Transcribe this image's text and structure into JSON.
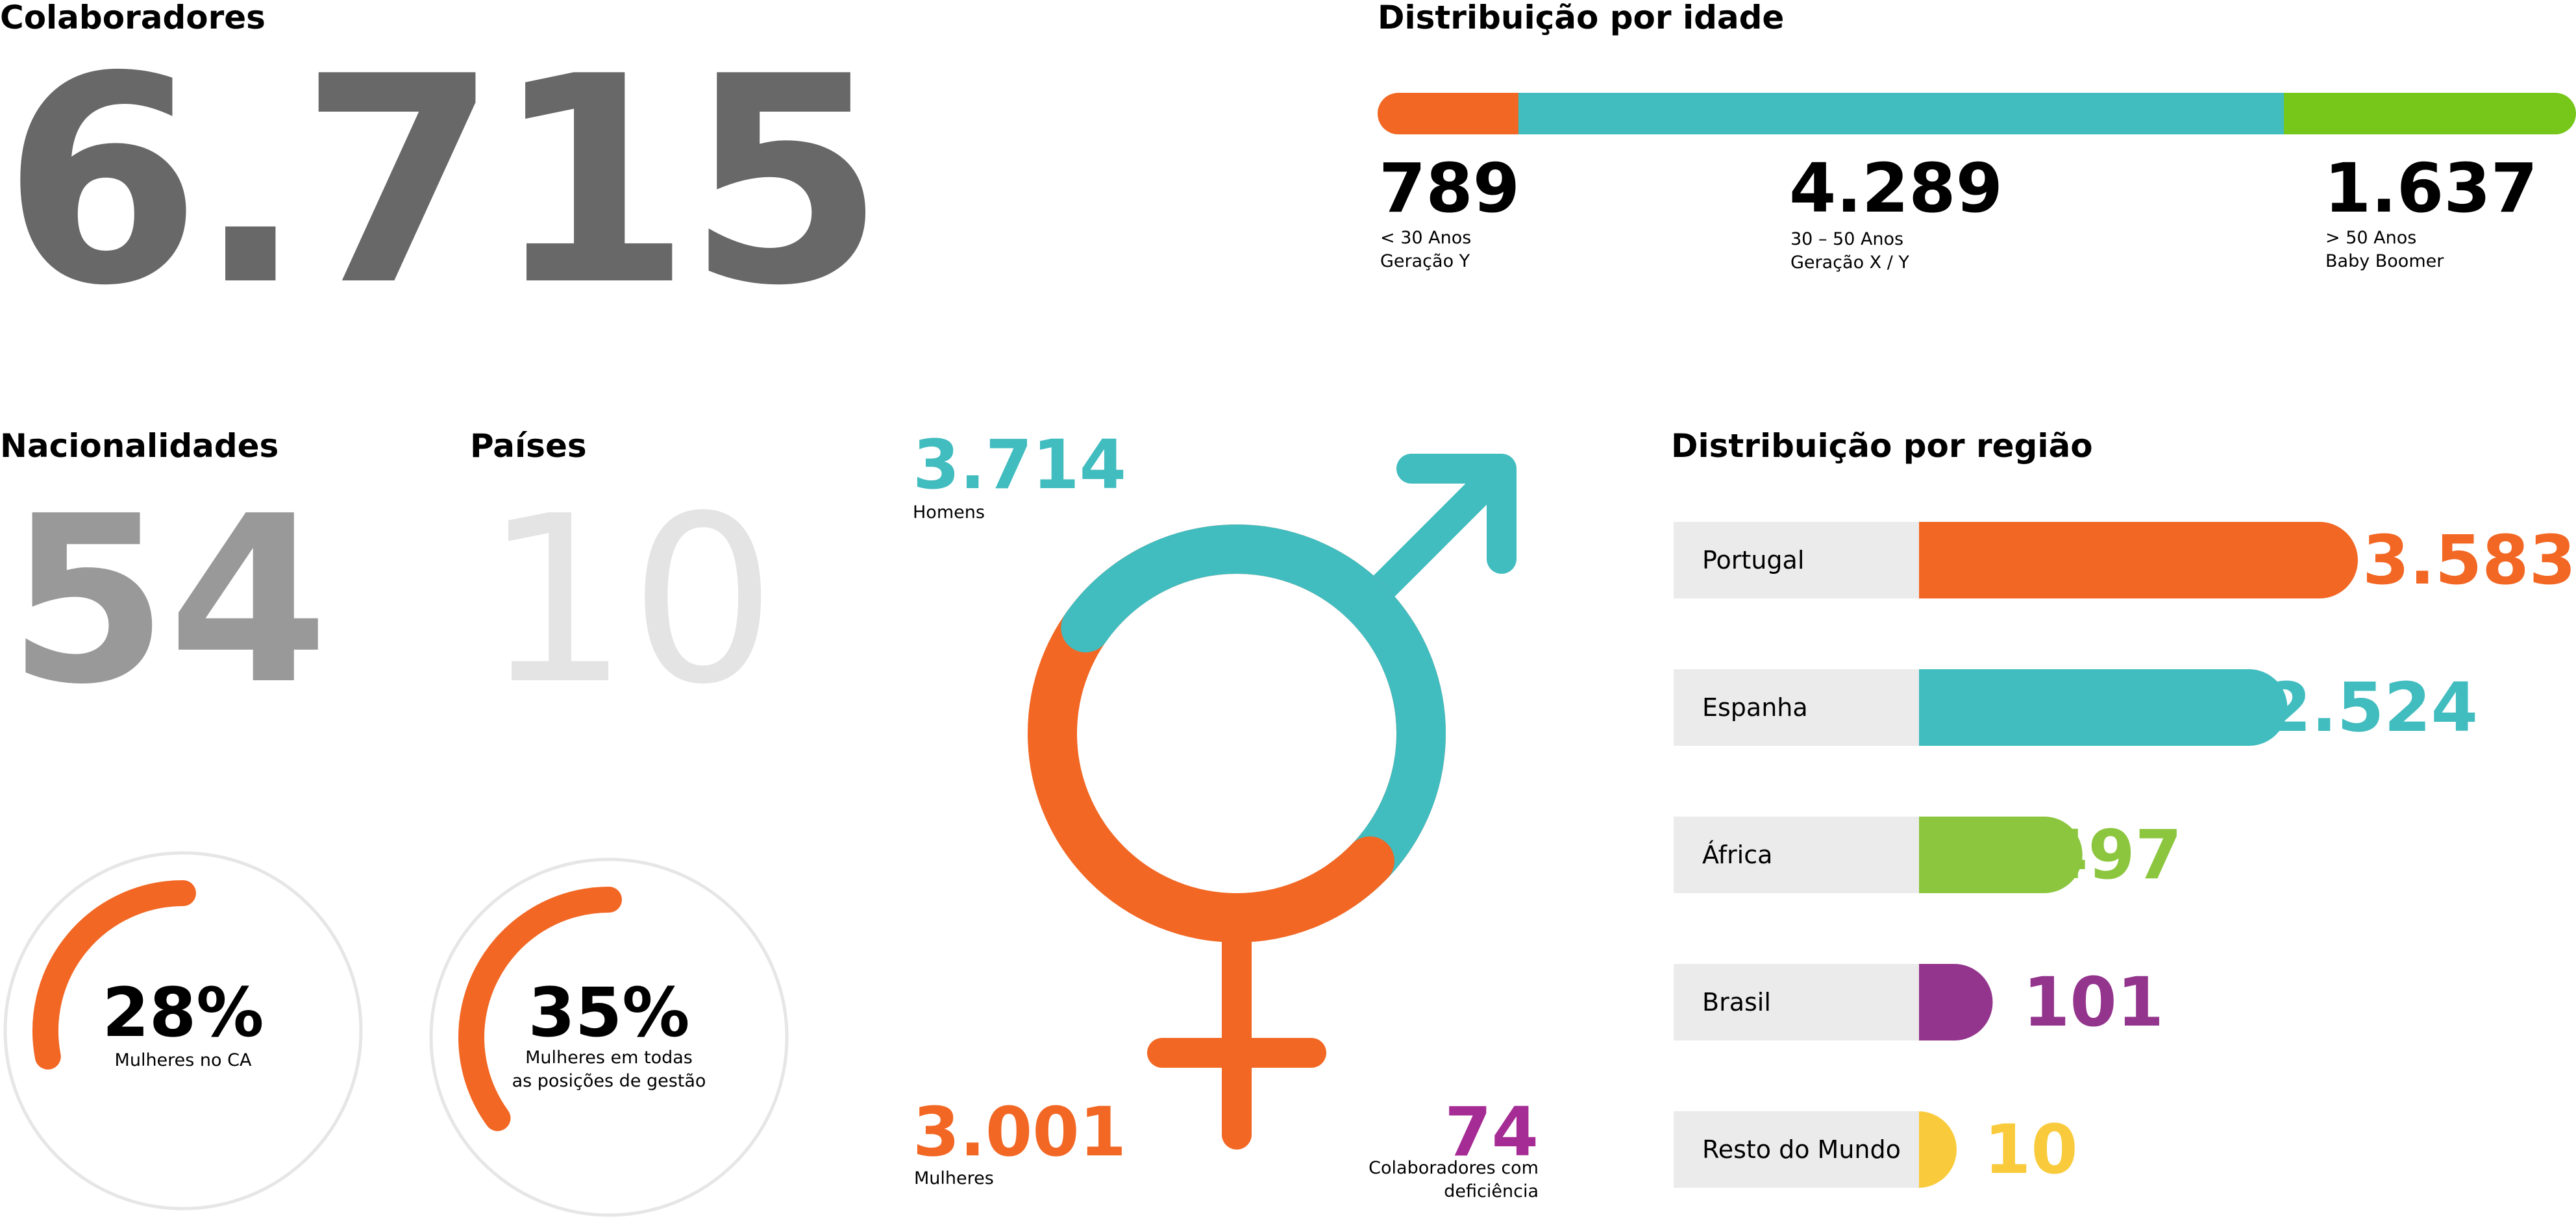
{
  "colaboradores": {
    "title": "Colaboradores",
    "value": "6.715"
  },
  "idade": {
    "title": "Distribuição por idade",
    "groups": [
      {
        "value": "789",
        "range": "< 30 Anos",
        "label": "Geração Y",
        "color": "#f26724"
      },
      {
        "value": "4.289",
        "range": "30 – 50 Anos",
        "label": "Geração X / Y",
        "color": "#41bcbf"
      },
      {
        "value": "1.637",
        "range": "> 50 Anos",
        "label": "Baby Boomer",
        "color": "#76c71a"
      }
    ]
  },
  "nacionalidades": {
    "title": "Nacionalidades",
    "value": "54"
  },
  "paises": {
    "title": "Países",
    "value": "10"
  },
  "mulheres_ca": {
    "value": "28%",
    "label": "Mulheres no CA",
    "percent": 28,
    "color": "#f26724"
  },
  "mulheres_gestao": {
    "value": "35%",
    "label_line1": "Mulheres em todas",
    "label_line2": "as posições de gestão",
    "percent": 35,
    "color": "#f26724"
  },
  "genero": {
    "homens": {
      "value": "3.714",
      "label": "Homens",
      "color": "#41bcbf"
    },
    "mulheres": {
      "value": "3.001",
      "label": "Mulheres",
      "color": "#f26724"
    },
    "deficiencia": {
      "value": "74",
      "label_line1": "Colaboradores com",
      "label_line2": "deficiência",
      "color": "#a52c94"
    }
  },
  "regiao": {
    "title": "Distribuição por região",
    "items": [
      {
        "name": "Portugal",
        "value": "3.583",
        "count": 3583,
        "color": "#f26724"
      },
      {
        "name": "Espanha",
        "value": "2.524",
        "count": 2524,
        "color": "#41bcbf"
      },
      {
        "name": "África",
        "value": "497",
        "count": 497,
        "color": "#8cc63f"
      },
      {
        "name": "Brasil",
        "value": "101",
        "count": 101,
        "color": "#93358d"
      },
      {
        "name": "Resto do Mundo",
        "value": "10",
        "count": 10,
        "color": "#f9cb3c"
      }
    ]
  },
  "chart_data": [
    {
      "type": "bar",
      "title": "Distribuição por idade",
      "categories": [
        "< 30 Anos",
        "30 – 50 Anos",
        "> 50 Anos"
      ],
      "values": [
        789,
        4289,
        1637
      ]
    },
    {
      "type": "bar",
      "title": "Distribuição por região",
      "categories": [
        "Portugal",
        "Espanha",
        "África",
        "Brasil",
        "Resto do Mundo"
      ],
      "values": [
        3583,
        2524,
        497,
        101,
        10
      ]
    },
    {
      "type": "pie",
      "categories": [
        "Homens",
        "Mulheres"
      ],
      "values": [
        3714,
        3001
      ]
    }
  ]
}
